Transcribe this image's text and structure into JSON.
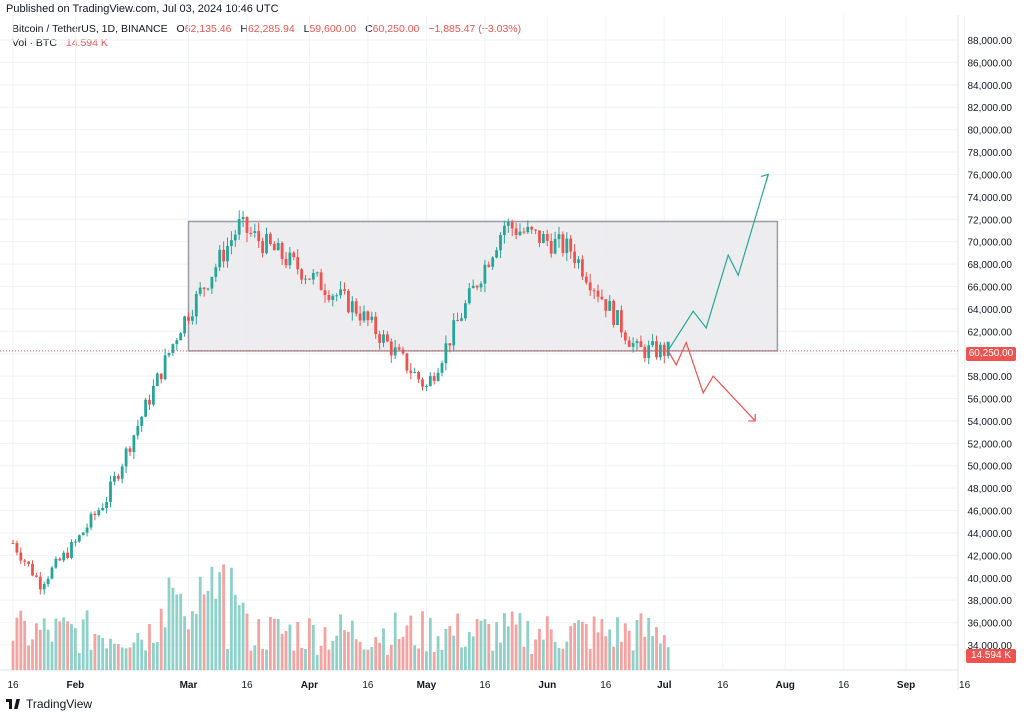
{
  "header": {
    "published": "Published on TradingView.com, Jul 03, 2024 10:46 UTC"
  },
  "legend": {
    "symbol": "Bitcoin / TetherUS, 1D, BINANCE",
    "open_label": "O",
    "open": "62,135.46",
    "high_label": "H",
    "high": "62,285.94",
    "low_label": "L",
    "low": "59,600.00",
    "close_label": "C",
    "close": "60,250.00",
    "change": "−1,885.47 (−3.03%)",
    "vol_label": "Vol · BTC",
    "vol_value": "14.594 K"
  },
  "price_axis": {
    "ticks": [
      "88,000.00",
      "86,000.00",
      "84,000.00",
      "82,000.00",
      "80,000.00",
      "78,000.00",
      "76,000.00",
      "74,000.00",
      "72,000.00",
      "70,000.00",
      "68,000.00",
      "66,000.00",
      "64,000.00",
      "62,000.00",
      "60,000.00",
      "58,000.00",
      "56,000.00",
      "54,000.00",
      "52,000.00",
      "50,000.00",
      "48,000.00",
      "46,000.00",
      "44,000.00",
      "42,000.00",
      "40,000.00",
      "38,000.00",
      "36,000.00",
      "34,000.00"
    ],
    "current_price": "60,250.00",
    "current_volume": "14.594 K"
  },
  "time_axis": {
    "ticks": [
      "16",
      "Feb",
      "Mar",
      "16",
      "Apr",
      "16",
      "May",
      "16",
      "Jun",
      "16",
      "Jul",
      "16",
      "Aug",
      "16",
      "Sep",
      "16"
    ]
  },
  "footer": {
    "brand": "TradingView"
  },
  "colors": {
    "up": "#26a69a",
    "down": "#ef5350",
    "vol_up": "#8fd0c8",
    "vol_down": "#f5a3a1",
    "box": "#e8e8ec",
    "grid": "#f0f3fa"
  },
  "chart_data": {
    "type": "candlestick",
    "symbol": "Bitcoin / TetherUS",
    "interval": "1D",
    "exchange": "BINANCE",
    "ylim": [
      33000,
      89500
    ],
    "approx_closes": [
      {
        "date": "2024-01-16",
        "close": 43100
      },
      {
        "date": "2024-01-23",
        "close": 39500
      },
      {
        "date": "2024-02-01",
        "close": 43100
      },
      {
        "date": "2024-02-09",
        "close": 47100
      },
      {
        "date": "2024-02-15",
        "close": 52000
      },
      {
        "date": "2024-02-28",
        "close": 62500
      },
      {
        "date": "2024-03-14",
        "close": 71400
      },
      {
        "date": "2024-04-13",
        "close": 64000
      },
      {
        "date": "2024-05-01",
        "close": 57000
      },
      {
        "date": "2024-05-21",
        "close": 71500
      },
      {
        "date": "2024-06-07",
        "close": 69300
      },
      {
        "date": "2024-06-24",
        "close": 60300
      },
      {
        "date": "2024-07-02",
        "close": 60250
      }
    ],
    "range_box": {
      "low": 60250,
      "high": 71800
    },
    "projections": {
      "bullish_target": 76000,
      "bearish_target": 54000
    }
  }
}
